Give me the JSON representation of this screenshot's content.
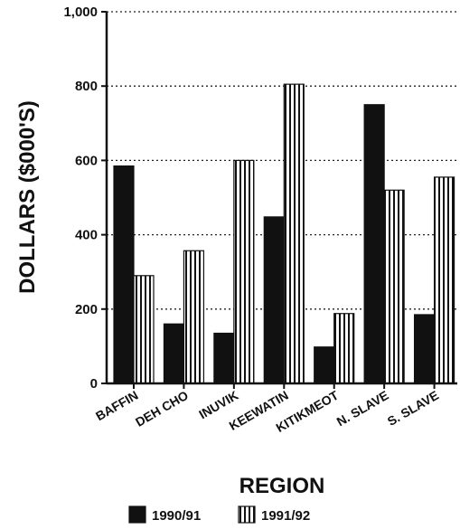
{
  "chart_data": {
    "type": "bar",
    "title": "",
    "xlabel": "REGION",
    "ylabel": "DOLLARS ($000'S)",
    "categories": [
      "BAFFIN",
      "DEH CHO",
      "INUVIK",
      "KEEWATIN",
      "KITIKMEOT",
      "N. SLAVE",
      "S. SLAVE"
    ],
    "series": [
      {
        "name": "1990/91",
        "values": [
          585,
          160,
          135,
          448,
          98,
          750,
          185
        ],
        "color": "#111111",
        "pattern": "solid-dark"
      },
      {
        "name": "1991/92",
        "values": [
          290,
          357,
          600,
          805,
          188,
          520,
          555
        ],
        "color": "#ffffff",
        "pattern": "vertical-stripes"
      }
    ],
    "ylim": [
      0,
      1000
    ],
    "yticks": [
      0,
      200,
      400,
      600,
      800,
      1000
    ],
    "ytick_labels": [
      "0",
      "200",
      "400",
      "600",
      "800",
      "1,000"
    ],
    "grid": "horizontal dotted",
    "legend": "bottom"
  }
}
